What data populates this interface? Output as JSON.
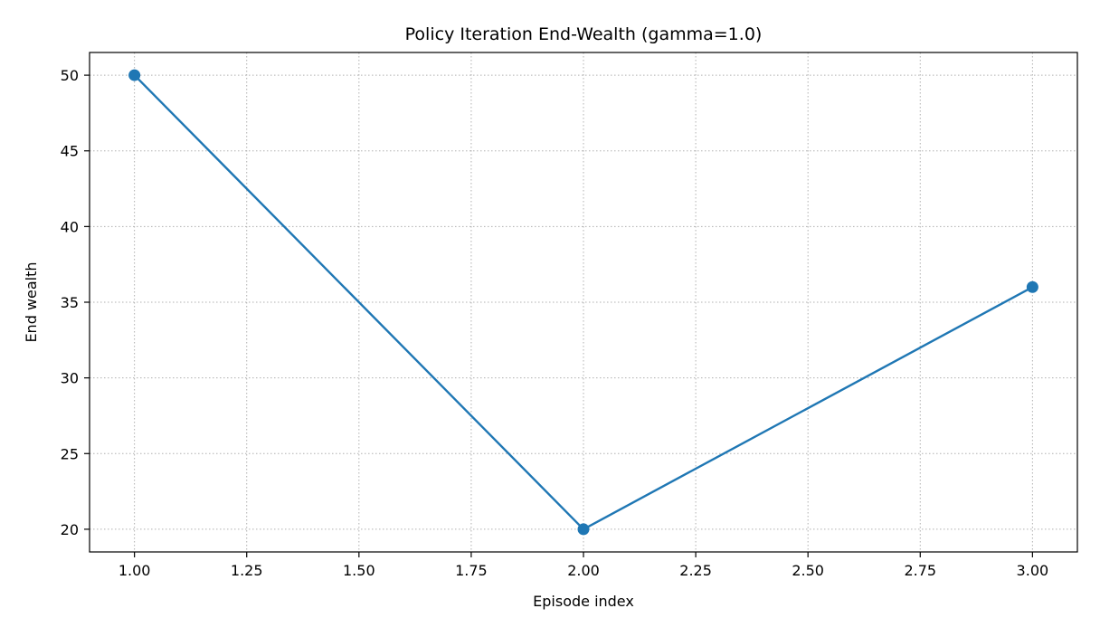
{
  "chart_data": {
    "type": "line",
    "title": "Policy Iteration End-Wealth (gamma=1.0)",
    "xlabel": "Episode index",
    "ylabel": "End wealth",
    "xlim": [
      0.9,
      3.1
    ],
    "ylim": [
      18.5,
      51.5
    ],
    "x_ticks": [
      1.0,
      1.25,
      1.5,
      1.75,
      2.0,
      2.25,
      2.5,
      2.75,
      3.0
    ],
    "x_tick_labels": [
      "1.00",
      "1.25",
      "1.50",
      "1.75",
      "2.00",
      "2.25",
      "2.50",
      "2.75",
      "3.00"
    ],
    "y_ticks": [
      20,
      25,
      30,
      35,
      40,
      45,
      50
    ],
    "y_tick_labels": [
      "20",
      "25",
      "30",
      "35",
      "40",
      "45",
      "50"
    ],
    "grid": true,
    "grid_style": "dotted",
    "marker": "circle",
    "series": [
      {
        "color": "#1f77b4",
        "x": [
          1,
          2,
          3
        ],
        "y": [
          50,
          20,
          36
        ]
      }
    ]
  }
}
